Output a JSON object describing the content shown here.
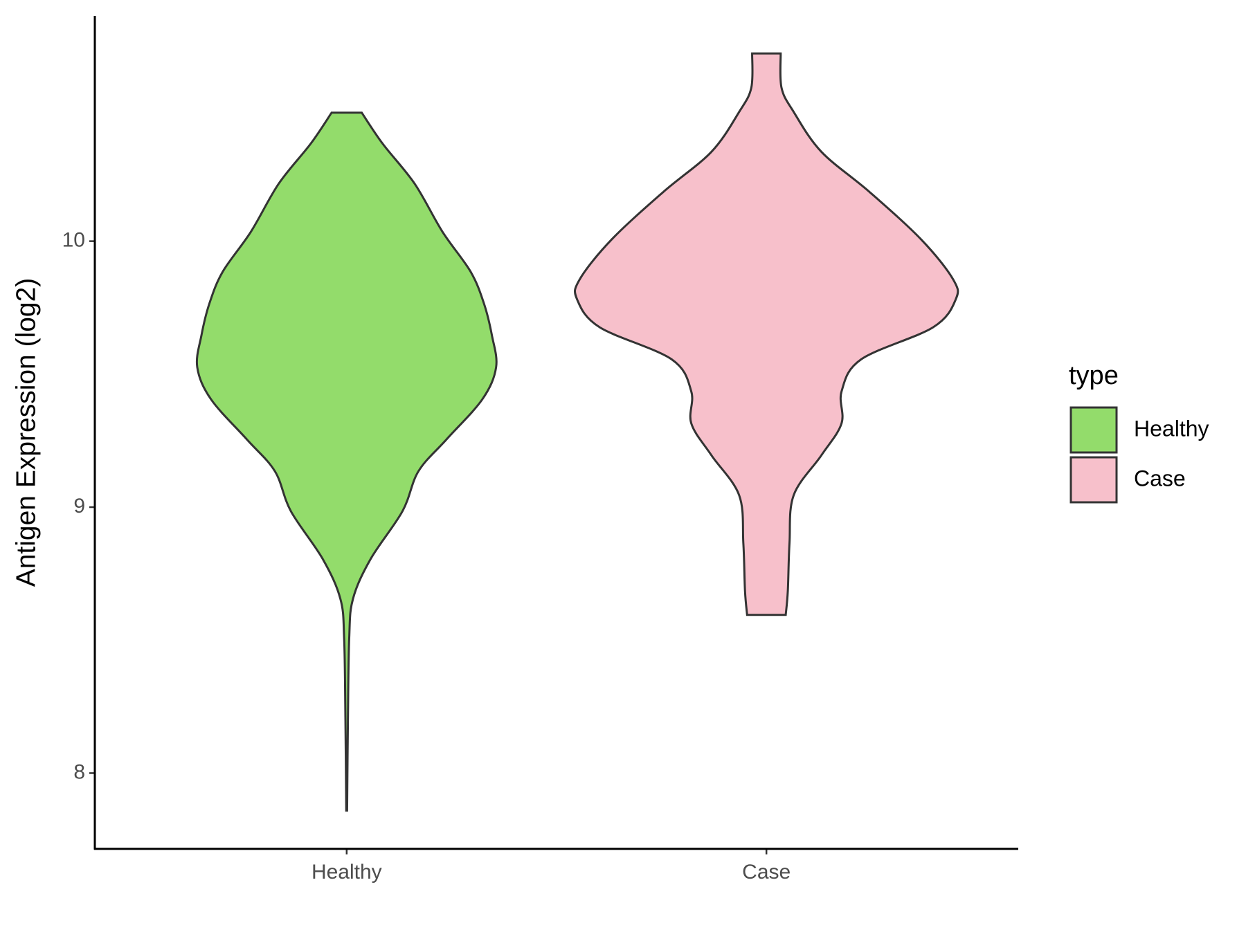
{
  "chart_data": {
    "type": "violin",
    "y_label": "Antigen Expression (log2)",
    "categories": [
      "Healthy",
      "Case"
    ],
    "legend_title": "type",
    "legend_position": "right",
    "xlim": [
      0.4,
      2.6
    ],
    "ylim": [
      7.715,
      10.847
    ],
    "yticks": [
      8,
      9,
      10
    ],
    "series": [
      {
        "name": "Healthy",
        "color": "#93dc6b",
        "values": [
          10.483,
          10.366,
          10.216,
          10.036,
          9.886,
          9.766,
          9.646,
          9.526,
          9.405,
          9.255,
          9.135,
          8.985,
          8.805,
          8.655,
          8.505,
          8.204,
          7.859
        ],
        "half_width": [
          0.036,
          0.086,
          0.162,
          0.228,
          0.295,
          0.327,
          0.346,
          0.356,
          0.323,
          0.238,
          0.171,
          0.133,
          0.057,
          0.015,
          0.006,
          0.003,
          0.001
        ]
      },
      {
        "name": "Case",
        "color": "#f7c0cb",
        "values": [
          10.706,
          10.577,
          10.486,
          10.336,
          10.186,
          10.006,
          9.856,
          9.781,
          9.676,
          9.556,
          9.435,
          9.315,
          9.195,
          9.045,
          8.865,
          8.685,
          8.595
        ],
        "half_width": [
          0.034,
          0.036,
          0.065,
          0.131,
          0.245,
          0.369,
          0.445,
          0.451,
          0.397,
          0.226,
          0.179,
          0.179,
          0.131,
          0.065,
          0.055,
          0.051,
          0.046
        ]
      }
    ]
  }
}
